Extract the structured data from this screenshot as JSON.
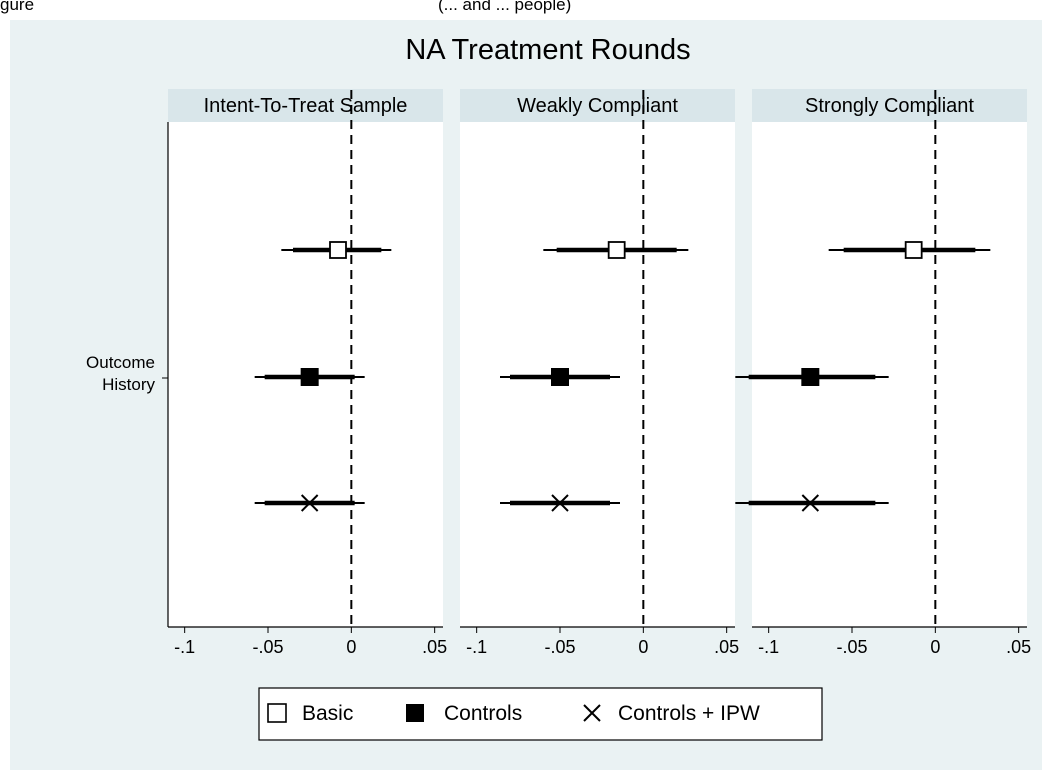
{
  "figure": {
    "caption_fragment": "gure",
    "caption_rest": "(... and ... people)"
  },
  "chart_data": {
    "type": "coefficient-plot",
    "title": "NA Treatment Rounds",
    "xlim": [
      -0.11,
      0.055
    ],
    "xticks": [
      -0.1,
      -0.05,
      0,
      0.05
    ],
    "xtick_labels": [
      "-.1",
      "-.05",
      "0",
      ".05"
    ],
    "y_category": "Outcome History",
    "reference_line": 0,
    "legend_position": "bottom",
    "series": [
      {
        "name": "Basic",
        "marker": "hollow-square"
      },
      {
        "name": "Controls",
        "marker": "filled-square"
      },
      {
        "name": "Controls + IPW",
        "marker": "x"
      }
    ],
    "panels": [
      {
        "title": "Intent-To-Treat Sample",
        "estimates": [
          {
            "series": "Basic",
            "est": -0.008,
            "ci90": [
              -0.035,
              0.018
            ],
            "ci95": [
              -0.042,
              0.024
            ]
          },
          {
            "series": "Controls",
            "est": -0.025,
            "ci90": [
              -0.052,
              0.002
            ],
            "ci95": [
              -0.058,
              0.008
            ]
          },
          {
            "series": "Controls + IPW",
            "est": -0.025,
            "ci90": [
              -0.052,
              0.002
            ],
            "ci95": [
              -0.058,
              0.008
            ]
          }
        ]
      },
      {
        "title": "Weakly Compliant",
        "estimates": [
          {
            "series": "Basic",
            "est": -0.016,
            "ci90": [
              -0.052,
              0.02
            ],
            "ci95": [
              -0.06,
              0.027
            ]
          },
          {
            "series": "Controls",
            "est": -0.05,
            "ci90": [
              -0.08,
              -0.02
            ],
            "ci95": [
              -0.086,
              -0.014
            ]
          },
          {
            "series": "Controls + IPW",
            "est": -0.05,
            "ci90": [
              -0.08,
              -0.02
            ],
            "ci95": [
              -0.086,
              -0.014
            ]
          }
        ]
      },
      {
        "title": "Strongly Compliant",
        "estimates": [
          {
            "series": "Basic",
            "est": -0.013,
            "ci90": [
              -0.055,
              0.024
            ],
            "ci95": [
              -0.064,
              0.033
            ]
          },
          {
            "series": "Controls",
            "est": -0.075,
            "ci90": [
              -0.112,
              -0.036
            ],
            "ci95": [
              -0.12,
              -0.028
            ]
          },
          {
            "series": "Controls + IPW",
            "est": -0.075,
            "ci90": [
              -0.112,
              -0.036
            ],
            "ci95": [
              -0.12,
              -0.028
            ]
          }
        ]
      }
    ]
  }
}
